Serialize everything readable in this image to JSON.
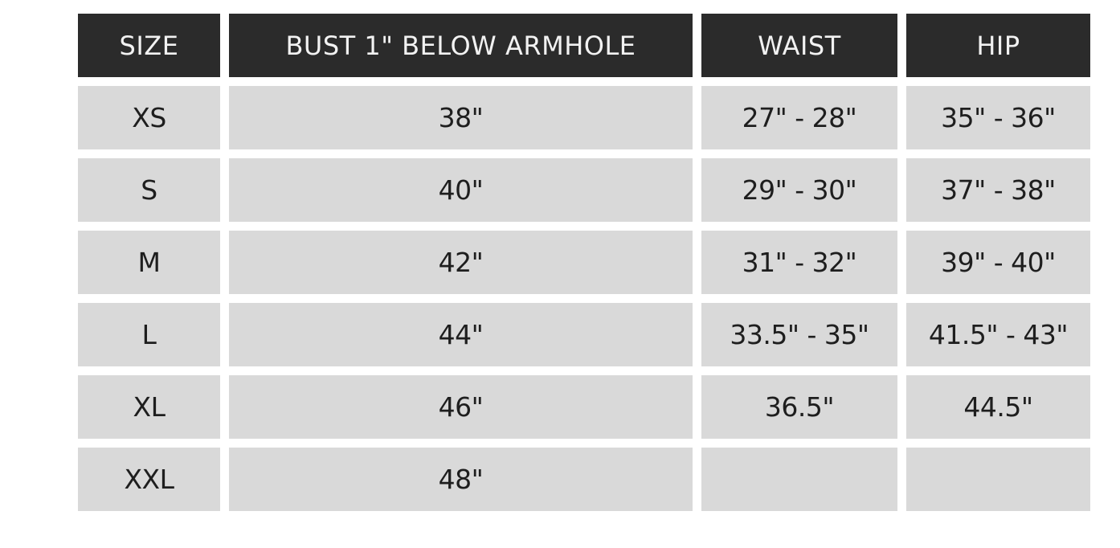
{
  "table": {
    "headers": [
      "SIZE",
      "BUST 1\" BELOW ARMHOLE",
      "WAIST",
      "HIP"
    ],
    "rows": [
      [
        "XS",
        "38\"",
        "27\" - 28\"",
        "35\" - 36\""
      ],
      [
        "S",
        "40\"",
        "29\" - 30\"",
        "37\" - 38\""
      ],
      [
        "M",
        "42\"",
        "31\" - 32\"",
        "39\" - 40\""
      ],
      [
        "L",
        "44\"",
        "33.5\" - 35\"",
        "41.5\" - 43\""
      ],
      [
        "XL",
        "46\"",
        "36.5\"",
        "44.5\""
      ],
      [
        "XXL",
        "48\"",
        "",
        ""
      ]
    ]
  },
  "colors": {
    "header_bg": "#2b2b2b",
    "cell_bg": "#d9d9d9",
    "header_text": "#f2f2f2"
  }
}
